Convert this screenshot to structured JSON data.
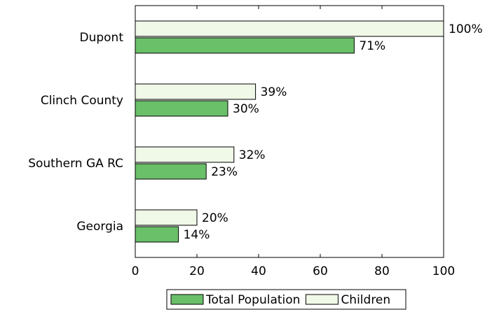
{
  "chart_data": {
    "type": "bar",
    "orientation": "horizontal",
    "categories": [
      "Dupont",
      "Clinch County",
      "Southern GA RC",
      "Georgia"
    ],
    "series": [
      {
        "name": "Children",
        "values": [
          100,
          39,
          32,
          20
        ],
        "labels": [
          "100%",
          "39%",
          "32%",
          "20%"
        ],
        "color": "#f0f8e8"
      },
      {
        "name": "Total Population",
        "values": [
          71,
          30,
          23,
          14
        ],
        "labels": [
          "71%",
          "30%",
          "23%",
          "14%"
        ],
        "color": "#6abf69"
      }
    ],
    "x_ticks": [
      "0",
      "20",
      "40",
      "60",
      "80",
      "100"
    ],
    "xlim": [
      0,
      100
    ],
    "grid": false,
    "legend": {
      "placement": "bottom",
      "entries": [
        "Total Population",
        "Children"
      ]
    },
    "title": "",
    "xlabel": "",
    "ylabel": ""
  }
}
